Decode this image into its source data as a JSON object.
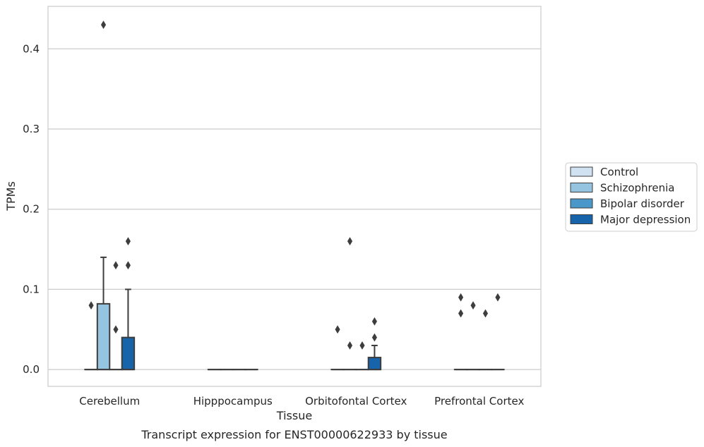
{
  "chart_data": {
    "type": "box",
    "caption": "Transcript expression for ENST00000622933 by tissue",
    "xlabel": "Tissue",
    "ylabel": "TPMs",
    "ylim": [
      -0.021,
      0.453
    ],
    "yticks": [
      0.0,
      0.1,
      0.2,
      0.3,
      0.4
    ],
    "ytick_labels": [
      "0.0",
      "0.1",
      "0.2",
      "0.3",
      "0.4"
    ],
    "grid": "horizontal",
    "legend_position": "right",
    "categories": [
      "Cerebellum",
      "Hipppocampus",
      "Orbitofontal Cortex",
      "Prefrontal Cortex"
    ],
    "series": [
      {
        "name": "Control",
        "color": "#d0e1f2",
        "boxes": [
          {
            "q1": 0,
            "median": 0,
            "q3": 0,
            "whisker_low": 0,
            "whisker_high": 0,
            "outliers": [
              0.08
            ]
          },
          {
            "q1": 0,
            "median": 0,
            "q3": 0,
            "whisker_low": 0,
            "whisker_high": 0,
            "outliers": []
          },
          {
            "q1": 0,
            "median": 0,
            "q3": 0,
            "whisker_low": 0,
            "whisker_high": 0,
            "outliers": [
              0.05
            ]
          },
          {
            "q1": 0,
            "median": 0,
            "q3": 0,
            "whisker_low": 0,
            "whisker_high": 0,
            "outliers": [
              0.09,
              0.07
            ]
          }
        ]
      },
      {
        "name": "Schizophrenia",
        "color": "#94c4df",
        "boxes": [
          {
            "q1": 0,
            "median": 0,
            "q3": 0.082,
            "whisker_low": 0,
            "whisker_high": 0.14,
            "outliers": [
              0.43
            ]
          },
          {
            "q1": 0,
            "median": 0,
            "q3": 0,
            "whisker_low": 0,
            "whisker_high": 0,
            "outliers": []
          },
          {
            "q1": 0,
            "median": 0,
            "q3": 0,
            "whisker_low": 0,
            "whisker_high": 0,
            "outliers": [
              0.16,
              0.03
            ]
          },
          {
            "q1": 0,
            "median": 0,
            "q3": 0,
            "whisker_low": 0,
            "whisker_high": 0,
            "outliers": [
              0.08
            ]
          }
        ]
      },
      {
        "name": "Bipolar disorder",
        "color": "#4a98c9",
        "boxes": [
          {
            "q1": 0,
            "median": 0,
            "q3": 0,
            "whisker_low": 0,
            "whisker_high": 0,
            "outliers": [
              0.13,
              0.05
            ]
          },
          {
            "q1": 0,
            "median": 0,
            "q3": 0,
            "whisker_low": 0,
            "whisker_high": 0,
            "outliers": []
          },
          {
            "q1": 0,
            "median": 0,
            "q3": 0,
            "whisker_low": 0,
            "whisker_high": 0,
            "outliers": [
              0.03
            ]
          },
          {
            "q1": 0,
            "median": 0,
            "q3": 0,
            "whisker_low": 0,
            "whisker_high": 0,
            "outliers": [
              0.07
            ]
          }
        ]
      },
      {
        "name": "Major depression",
        "color": "#1764ab",
        "boxes": [
          {
            "q1": 0,
            "median": 0,
            "q3": 0.04,
            "whisker_low": 0,
            "whisker_high": 0.1,
            "outliers": [
              0.16,
              0.13
            ]
          },
          {
            "q1": 0,
            "median": 0,
            "q3": 0,
            "whisker_low": 0,
            "whisker_high": 0,
            "outliers": []
          },
          {
            "q1": 0,
            "median": 0,
            "q3": 0.015,
            "whisker_low": 0,
            "whisker_high": 0.03,
            "outliers": [
              0.06,
              0.04
            ]
          },
          {
            "q1": 0,
            "median": 0,
            "q3": 0,
            "whisker_low": 0,
            "whisker_high": 0,
            "outliers": [
              0.09
            ]
          }
        ]
      }
    ]
  }
}
